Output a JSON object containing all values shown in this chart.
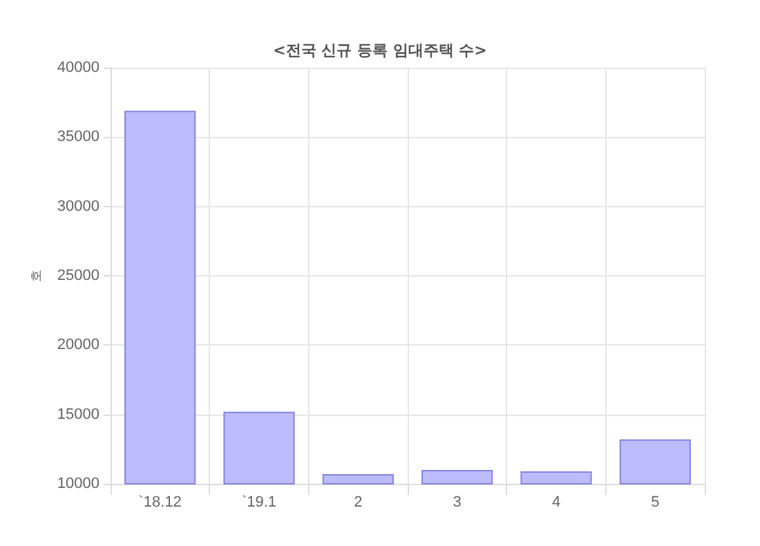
{
  "chart_data": {
    "type": "bar",
    "title": "<전국 신규 등록 임대주택 수>",
    "ylabel": "호",
    "categories": [
      "`18.12",
      "`19.1",
      "2",
      "3",
      "4",
      "5"
    ],
    "values": [
      36900,
      15200,
      10700,
      11000,
      10900,
      13200
    ],
    "color": "#bcbcfc",
    "ylim": [
      10000,
      40000
    ],
    "yticks": [
      10000,
      15000,
      20000,
      25000,
      30000,
      35000,
      40000
    ],
    "grid": true
  }
}
